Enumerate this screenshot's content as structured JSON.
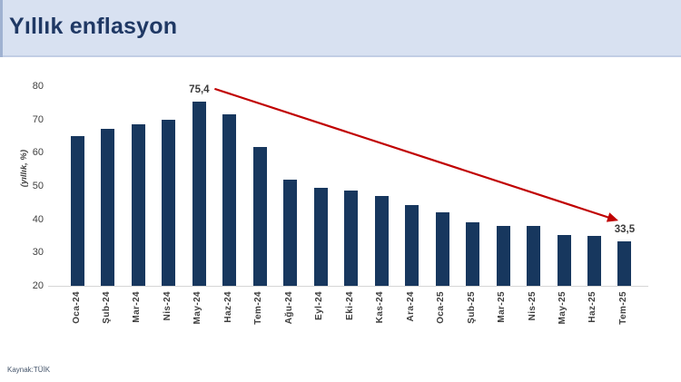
{
  "header": {
    "title": "Yıllık enflasyon"
  },
  "footer": {
    "source": "Kaynak:TÜİK"
  },
  "colors": {
    "header_bg": "#D8E1F1",
    "title_text": "#1F3864",
    "bar": "#17375E",
    "arrow": "#C00000",
    "axis_text": "#404040"
  },
  "chart_data": {
    "type": "bar",
    "title": "Yıllık enflasyon",
    "xlabel": "",
    "ylabel": "(yıllık, %)",
    "categories": [
      "Oca-24",
      "Şub-24",
      "Mar-24",
      "Nis-24",
      "May-24",
      "Haz-24",
      "Tem-24",
      "Ağu-24",
      "Eyl-24",
      "Eki-24",
      "Kas-24",
      "Ara-24",
      "Oca-25",
      "Şub-25",
      "Mar-25",
      "Nis-25",
      "May-25",
      "Haz-25",
      "Tem-25"
    ],
    "values": [
      64.9,
      67.1,
      68.5,
      69.8,
      75.4,
      71.6,
      61.8,
      52.0,
      49.4,
      48.6,
      47.1,
      44.4,
      42.1,
      39.1,
      38.1,
      37.9,
      35.4,
      35.1,
      33.5
    ],
    "ylim": [
      20,
      80
    ],
    "yticks": [
      20,
      30,
      40,
      50,
      60,
      70,
      80
    ],
    "grid": false,
    "legend": "none",
    "bar_color": "#17375E",
    "annotations": {
      "peak": {
        "index": 4,
        "label": "75,4"
      },
      "latest": {
        "index": 18,
        "label": "33,5"
      },
      "trend_arrow": {
        "from_index": 4,
        "to_index": 18,
        "color": "#C00000"
      }
    }
  }
}
